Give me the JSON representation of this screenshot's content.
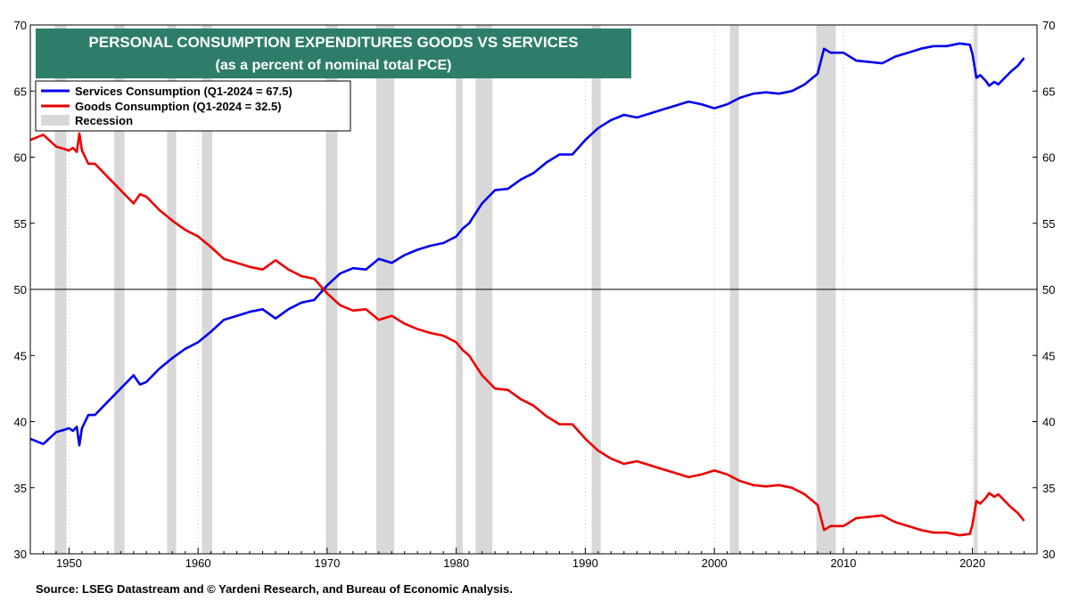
{
  "chart_data": {
    "type": "line",
    "title": "PERSONAL CONSUMPTION EXPENDITURES GOODS VS SERVICES",
    "subtitle": "(as a percent of nominal total PCE)",
    "source": "Source: LSEG Datastream and © Yardeni Research, and Bureau of Economic Analysis.",
    "xlim": [
      1947,
      2025
    ],
    "ylim": [
      30,
      70
    ],
    "y_ticks": [
      30,
      35,
      40,
      45,
      50,
      55,
      60,
      65,
      70
    ],
    "x_ticks": [
      1950,
      1960,
      1970,
      1980,
      1990,
      2000,
      2010,
      2020
    ],
    "reference_line": 50,
    "legend": [
      {
        "label": "Services Consumption (Q1-2024 = 67.5)",
        "color": "#0000ee",
        "kind": "line"
      },
      {
        "label": "Goods Consumption (Q1-2024 = 32.5)",
        "color": "#ee0000",
        "kind": "line"
      },
      {
        "label": "Recession",
        "color": "#d8d8d8",
        "kind": "box"
      }
    ],
    "recessions": [
      [
        1948.9,
        1949.8
      ],
      [
        1953.5,
        1954.3
      ],
      [
        1957.6,
        1958.3
      ],
      [
        1960.3,
        1961.1
      ],
      [
        1969.9,
        1970.8
      ],
      [
        1973.8,
        1975.2
      ],
      [
        1980.0,
        1980.5
      ],
      [
        1981.5,
        1982.8
      ],
      [
        1990.5,
        1991.2
      ],
      [
        2001.2,
        2001.9
      ],
      [
        2007.9,
        2009.4
      ],
      [
        2020.1,
        2020.4
      ]
    ],
    "series": [
      {
        "name": "Services Consumption",
        "color": "#0000ee",
        "x": [
          1947.0,
          1948.0,
          1949.0,
          1949.7,
          1950.0,
          1950.3,
          1950.6,
          1950.8,
          1951.0,
          1951.5,
          1952.0,
          1953.0,
          1953.5,
          1954.0,
          1955.0,
          1955.5,
          1956.0,
          1957.0,
          1958.0,
          1959.0,
          1960.0,
          1961.0,
          1962.0,
          1963.0,
          1964.0,
          1965.0,
          1966.0,
          1967.0,
          1968.0,
          1969.0,
          1970.0,
          1971.0,
          1972.0,
          1973.0,
          1974.0,
          1975.0,
          1976.0,
          1977.0,
          1978.0,
          1979.0,
          1980.0,
          1980.5,
          1981.0,
          1982.0,
          1983.0,
          1984.0,
          1985.0,
          1986.0,
          1987.0,
          1988.0,
          1989.0,
          1990.0,
          1991.0,
          1992.0,
          1993.0,
          1994.0,
          1995.0,
          1996.0,
          1997.0,
          1998.0,
          1999.0,
          2000.0,
          2001.0,
          2002.0,
          2003.0,
          2004.0,
          2005.0,
          2006.0,
          2007.0,
          2008.0,
          2008.5,
          2009.0,
          2010.0,
          2011.0,
          2012.0,
          2013.0,
          2014.0,
          2015.0,
          2016.0,
          2017.0,
          2018.0,
          2019.0,
          2019.8,
          2020.0,
          2020.3,
          2020.6,
          2021.0,
          2021.3,
          2021.7,
          2022.0,
          2022.5,
          2023.0,
          2023.5,
          2024.0
        ],
        "values": [
          38.7,
          38.3,
          39.2,
          39.4,
          39.5,
          39.3,
          39.6,
          38.2,
          39.5,
          40.5,
          40.5,
          41.5,
          42.0,
          42.5,
          43.5,
          42.8,
          43.0,
          44.0,
          44.8,
          45.5,
          46.0,
          46.8,
          47.7,
          48.0,
          48.3,
          48.5,
          47.8,
          48.5,
          49.0,
          49.2,
          50.3,
          51.2,
          51.6,
          51.5,
          52.3,
          52.0,
          52.6,
          53.0,
          53.3,
          53.5,
          54.0,
          54.6,
          55.0,
          56.5,
          57.5,
          57.6,
          58.3,
          58.8,
          59.6,
          60.2,
          60.2,
          61.3,
          62.2,
          62.8,
          63.2,
          63.0,
          63.3,
          63.6,
          63.9,
          64.2,
          64.0,
          63.7,
          64.0,
          64.5,
          64.8,
          64.9,
          64.8,
          65.0,
          65.5,
          66.3,
          68.2,
          67.9,
          67.9,
          67.3,
          67.2,
          67.1,
          67.6,
          67.9,
          68.2,
          68.4,
          68.4,
          68.6,
          68.5,
          67.8,
          66.0,
          66.2,
          65.8,
          65.4,
          65.7,
          65.5,
          66.0,
          66.5,
          66.9,
          67.5
        ]
      },
      {
        "name": "Goods Consumption",
        "color": "#ee0000",
        "x": [
          1947.0,
          1948.0,
          1949.0,
          1949.7,
          1950.0,
          1950.3,
          1950.6,
          1950.8,
          1951.0,
          1951.5,
          1952.0,
          1953.0,
          1953.5,
          1954.0,
          1955.0,
          1955.5,
          1956.0,
          1957.0,
          1958.0,
          1959.0,
          1960.0,
          1961.0,
          1962.0,
          1963.0,
          1964.0,
          1965.0,
          1966.0,
          1967.0,
          1968.0,
          1969.0,
          1970.0,
          1971.0,
          1972.0,
          1973.0,
          1974.0,
          1975.0,
          1976.0,
          1977.0,
          1978.0,
          1979.0,
          1980.0,
          1980.5,
          1981.0,
          1982.0,
          1983.0,
          1984.0,
          1985.0,
          1986.0,
          1987.0,
          1988.0,
          1989.0,
          1990.0,
          1991.0,
          1992.0,
          1993.0,
          1994.0,
          1995.0,
          1996.0,
          1997.0,
          1998.0,
          1999.0,
          2000.0,
          2001.0,
          2002.0,
          2003.0,
          2004.0,
          2005.0,
          2006.0,
          2007.0,
          2008.0,
          2008.5,
          2009.0,
          2010.0,
          2011.0,
          2012.0,
          2013.0,
          2014.0,
          2015.0,
          2016.0,
          2017.0,
          2018.0,
          2019.0,
          2019.8,
          2020.0,
          2020.3,
          2020.6,
          2021.0,
          2021.3,
          2021.7,
          2022.0,
          2022.5,
          2023.0,
          2023.5,
          2024.0
        ],
        "values": [
          61.3,
          61.7,
          60.8,
          60.6,
          60.5,
          60.7,
          60.4,
          61.8,
          60.5,
          59.5,
          59.5,
          58.5,
          58.0,
          57.5,
          56.5,
          57.2,
          57.0,
          56.0,
          55.2,
          54.5,
          54.0,
          53.2,
          52.3,
          52.0,
          51.7,
          51.5,
          52.2,
          51.5,
          51.0,
          50.8,
          49.7,
          48.8,
          48.4,
          48.5,
          47.7,
          48.0,
          47.4,
          47.0,
          46.7,
          46.5,
          46.0,
          45.4,
          45.0,
          43.5,
          42.5,
          42.4,
          41.7,
          41.2,
          40.4,
          39.8,
          39.8,
          38.7,
          37.8,
          37.2,
          36.8,
          37.0,
          36.7,
          36.4,
          36.1,
          35.8,
          36.0,
          36.3,
          36.0,
          35.5,
          35.2,
          35.1,
          35.2,
          35.0,
          34.5,
          33.7,
          31.8,
          32.1,
          32.1,
          32.7,
          32.8,
          32.9,
          32.4,
          32.1,
          31.8,
          31.6,
          31.6,
          31.4,
          31.5,
          32.2,
          34.0,
          33.8,
          34.2,
          34.6,
          34.3,
          34.5,
          34.0,
          33.5,
          33.1,
          32.5
        ]
      }
    ]
  }
}
